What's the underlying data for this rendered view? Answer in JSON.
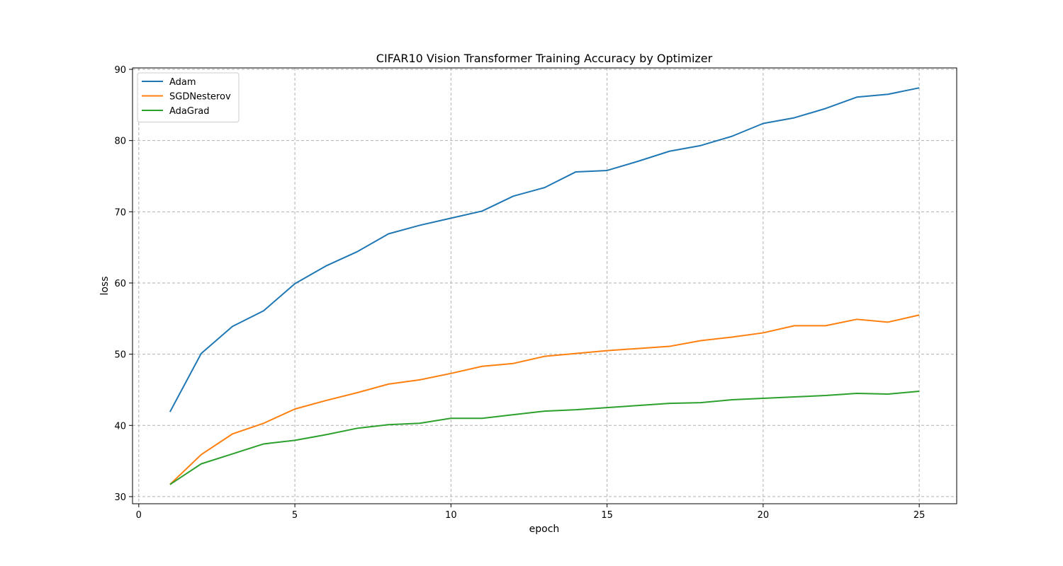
{
  "chart_data": {
    "type": "line",
    "title": "CIFAR10 Vision Transformer Training Accuracy by Optimizer",
    "xlabel": "epoch",
    "ylabel": "loss",
    "xlim": [
      -0.2,
      26.2
    ],
    "ylim": [
      29,
      90.2
    ],
    "xticks": [
      0,
      5,
      10,
      15,
      20,
      25
    ],
    "yticks": [
      30,
      40,
      50,
      60,
      70,
      80,
      90
    ],
    "grid": true,
    "legend_position": "top-left",
    "x": [
      1,
      2,
      3,
      4,
      5,
      6,
      7,
      8,
      9,
      10,
      11,
      12,
      13,
      14,
      15,
      16,
      17,
      18,
      19,
      20,
      21,
      22,
      23,
      24,
      25
    ],
    "series": [
      {
        "name": "Adam",
        "color": "#1f77b4",
        "values": [
          41.9,
          50.1,
          53.9,
          56.1,
          59.9,
          62.4,
          64.4,
          66.9,
          68.1,
          69.1,
          70.1,
          72.2,
          73.4,
          75.6,
          75.8,
          77.1,
          78.5,
          79.3,
          80.6,
          82.4,
          83.2,
          84.5,
          86.1,
          86.5,
          87.4
        ]
      },
      {
        "name": "SGDNesterov",
        "color": "#ff7f0e",
        "values": [
          31.7,
          35.9,
          38.8,
          40.3,
          42.3,
          43.5,
          44.6,
          45.8,
          46.4,
          47.3,
          48.3,
          48.7,
          49.7,
          50.1,
          50.5,
          50.8,
          51.1,
          51.9,
          52.4,
          53.0,
          54.0,
          54.0,
          54.9,
          54.5,
          55.5
        ]
      },
      {
        "name": "AdaGrad",
        "color": "#2ca02c",
        "values": [
          31.7,
          34.6,
          36.0,
          37.4,
          37.9,
          38.7,
          39.6,
          40.1,
          40.3,
          41.0,
          41.0,
          41.5,
          42.0,
          42.2,
          42.5,
          42.8,
          43.1,
          43.2,
          43.6,
          43.8,
          44.0,
          44.2,
          44.5,
          44.4,
          44.8
        ]
      }
    ]
  }
}
